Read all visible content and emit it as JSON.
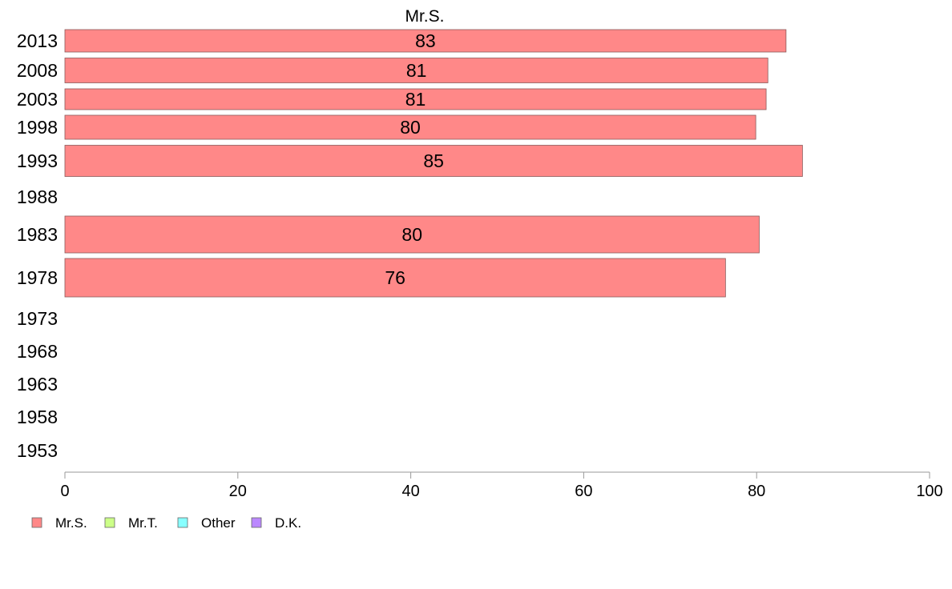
{
  "chart_data": {
    "type": "bar",
    "orientation": "horizontal",
    "title": "Mr.S.",
    "xlabel": "",
    "ylabel": "",
    "categories": [
      "2013",
      "2008",
      "2003",
      "1998",
      "1993",
      "1988",
      "1983",
      "1978",
      "1973",
      "1968",
      "1963",
      "1958",
      "1953"
    ],
    "series": [
      {
        "name": "Mr.S.",
        "color": "#ff8888",
        "values": [
          83.4,
          81.3,
          81.1,
          79.9,
          85.3,
          null,
          80.3,
          76.4,
          null,
          null,
          null,
          null,
          null
        ],
        "labels": [
          "83",
          "81",
          "81",
          "80",
          "85",
          "",
          "80",
          "76",
          "",
          "",
          "",
          "",
          ""
        ]
      }
    ],
    "xlim": [
      0,
      100
    ],
    "xticks": [
      0,
      20,
      40,
      60,
      80,
      100
    ],
    "grid": false,
    "legend": {
      "position": "bottom-left",
      "items": [
        {
          "label": "Mr.S.",
          "color": "#ff8888"
        },
        {
          "label": "Mr.T.",
          "color": "#ccff88"
        },
        {
          "label": "Other",
          "color": "#88ffff"
        },
        {
          "label": "D.K.",
          "color": "#bb88ff"
        }
      ]
    }
  }
}
